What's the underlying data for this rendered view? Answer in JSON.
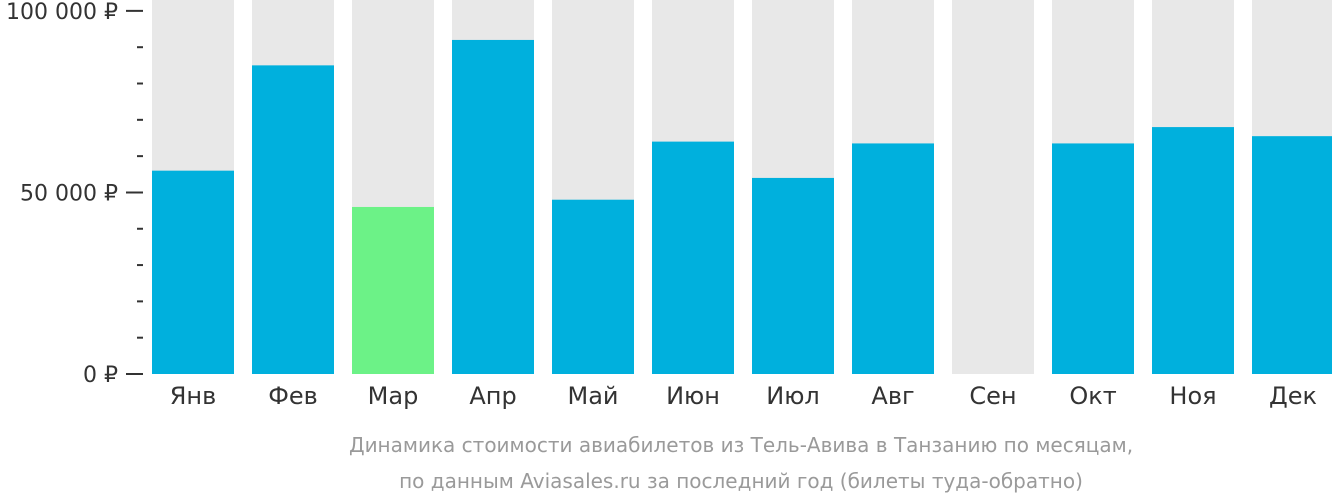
{
  "chart_data": {
    "type": "bar",
    "categories": [
      "Янв",
      "Фев",
      "Мар",
      "Апр",
      "Май",
      "Июн",
      "Июл",
      "Авг",
      "Сен",
      "Окт",
      "Ноя",
      "Дек"
    ],
    "values": [
      56000,
      85000,
      46000,
      92000,
      48000,
      64000,
      54000,
      63500,
      null,
      63500,
      68000,
      65500
    ],
    "highlight_category": "Мар",
    "ylim": [
      0,
      103000
    ],
    "yticks": [
      0,
      50000,
      100000
    ],
    "ytick_labels": [
      "0 ₽",
      "50 000 ₽",
      "100 000 ₽"
    ],
    "minor_ticks_per_major": 5,
    "caption": [
      "Динамика стоимости авиабилетов из Тель-Авива в Танзанию по месяцам,",
      "по данным Aviasales.ru за последний год (билеты туда-обратно)"
    ],
    "colors": {
      "bar": "#00b0dd",
      "highlight": "#6cf287",
      "background_bar": "#e8e8e8",
      "axis": "#333333",
      "caption": "#9a9a9a"
    }
  }
}
